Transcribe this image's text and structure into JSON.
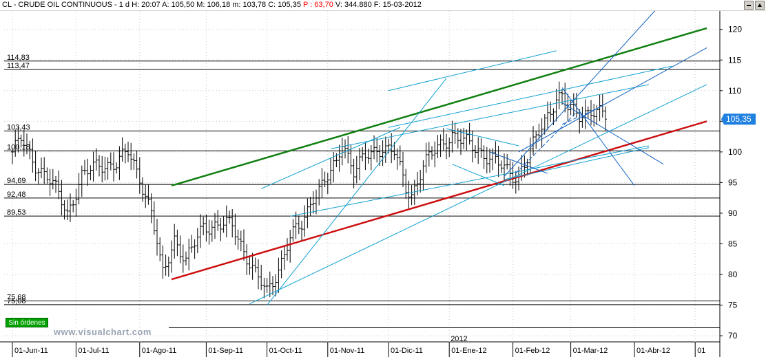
{
  "header": {
    "symbol": "CL - CRUDE OIL CONTINUOUS -",
    "period": "1 d",
    "time": "H: 20:07",
    "open": "A: 105,50",
    "high": "M: 106,18",
    "low": "m: 103,78",
    "close": "C: 105,35",
    "change": "P : 63,70",
    "volume": "V: 344.880",
    "date": "F: 15-03-2012"
  },
  "badge": {
    "label": "Sin órdenes"
  },
  "watermark": "www.visualchart.com",
  "colors": {
    "up_trend": "#108010",
    "support": "#cc1010",
    "channel": "#10a0d0",
    "fan": "#1060c0",
    "price_bar": "#000000",
    "last_price_box": "#2080e0",
    "change": "#ff0000"
  },
  "chart_data": {
    "type": "bar",
    "subtype": "ohlc",
    "title": "CL - CRUDE OIL CONTINUOUS",
    "ylim": [
      69,
      123
    ],
    "y_ticks": [
      70,
      75,
      80,
      85,
      90,
      95,
      100,
      105,
      110,
      115,
      120
    ],
    "y_tick_labels": [
      "70",
      "75",
      "80",
      "85",
      "90",
      "95",
      "100",
      "105",
      "110",
      "115",
      "120"
    ],
    "x_ticks": [
      {
        "i": 0,
        "label": "01-Jun-11"
      },
      {
        "i": 22,
        "label": "01-Jul-11"
      },
      {
        "i": 44,
        "label": "01-Ago-11"
      },
      {
        "i": 67,
        "label": "01-Sep-11"
      },
      {
        "i": 88,
        "label": "01-Oct-11"
      },
      {
        "i": 109,
        "label": "01-Nov-11"
      },
      {
        "i": 130,
        "label": "01-Dic-11"
      },
      {
        "i": 151,
        "label": "01-Ene-12"
      },
      {
        "i": 173,
        "label": "01-Feb-12"
      },
      {
        "i": 193,
        "label": "01-Mar-12"
      },
      {
        "i": 215,
        "label": "01-Abr-12"
      },
      {
        "i": 236,
        "label": "01"
      }
    ],
    "year_marker": {
      "i": 151,
      "label": "2012"
    },
    "x_count": 240,
    "last_price": 105.35,
    "last_price_label": "105,35",
    "levels": [
      {
        "value": 114.83,
        "label": "114,83"
      },
      {
        "value": 113.47,
        "label": "113,47"
      },
      {
        "value": 103.43,
        "label": "103,43"
      },
      {
        "value": 100.18,
        "label": "100,18"
      },
      {
        "value": 94.69,
        "label": "94,69"
      },
      {
        "value": 92.48,
        "label": "92,48"
      },
      {
        "value": 89.53,
        "label": "89,53"
      },
      {
        "value": 75.68,
        "label": "75,68"
      },
      {
        "value": 75.08,
        "label": "75,08"
      }
    ],
    "anchors": [
      {
        "i": 0,
        "p": 100
      },
      {
        "i": 3,
        "p": 102
      },
      {
        "i": 8,
        "p": 98
      },
      {
        "i": 12,
        "p": 96
      },
      {
        "i": 16,
        "p": 93
      },
      {
        "i": 19,
        "p": 90
      },
      {
        "i": 24,
        "p": 96
      },
      {
        "i": 30,
        "p": 98
      },
      {
        "i": 36,
        "p": 98
      },
      {
        "i": 40,
        "p": 100
      },
      {
        "i": 44,
        "p": 96
      },
      {
        "i": 48,
        "p": 90
      },
      {
        "i": 50,
        "p": 85
      },
      {
        "i": 51,
        "p": 82
      },
      {
        "i": 52,
        "p": 80
      },
      {
        "i": 56,
        "p": 86
      },
      {
        "i": 60,
        "p": 82
      },
      {
        "i": 66,
        "p": 88
      },
      {
        "i": 72,
        "p": 88
      },
      {
        "i": 76,
        "p": 88
      },
      {
        "i": 80,
        "p": 84
      },
      {
        "i": 84,
        "p": 80
      },
      {
        "i": 88,
        "p": 77
      },
      {
        "i": 92,
        "p": 81
      },
      {
        "i": 96,
        "p": 86
      },
      {
        "i": 100,
        "p": 88
      },
      {
        "i": 104,
        "p": 93
      },
      {
        "i": 108,
        "p": 95
      },
      {
        "i": 112,
        "p": 98
      },
      {
        "i": 114,
        "p": 102
      },
      {
        "i": 118,
        "p": 97
      },
      {
        "i": 122,
        "p": 99
      },
      {
        "i": 128,
        "p": 101
      },
      {
        "i": 132,
        "p": 100
      },
      {
        "i": 136,
        "p": 94
      },
      {
        "i": 138,
        "p": 93
      },
      {
        "i": 142,
        "p": 98
      },
      {
        "i": 148,
        "p": 101
      },
      {
        "i": 152,
        "p": 103
      },
      {
        "i": 158,
        "p": 101
      },
      {
        "i": 166,
        "p": 99
      },
      {
        "i": 170,
        "p": 97
      },
      {
        "i": 174,
        "p": 96
      },
      {
        "i": 178,
        "p": 99
      },
      {
        "i": 182,
        "p": 103
      },
      {
        "i": 186,
        "p": 107
      },
      {
        "i": 188,
        "p": 109
      },
      {
        "i": 190,
        "p": 109
      },
      {
        "i": 192,
        "p": 107
      },
      {
        "i": 196,
        "p": 106
      },
      {
        "i": 200,
        "p": 107
      },
      {
        "i": 204,
        "p": 106
      },
      {
        "i": 205,
        "p": 105.35
      }
    ],
    "trendlines": [
      {
        "name": "up-trend",
        "color": "#108010",
        "width": 2.5,
        "x1": 55,
        "y1": 94.5,
        "x2": 240,
        "y2": 120.2
      },
      {
        "name": "support",
        "color": "#cc1010",
        "width": 2.5,
        "x1": 55,
        "y1": 79.2,
        "x2": 240,
        "y2": 105.0
      },
      {
        "name": "ch1",
        "color": "#10a0d0",
        "width": 1,
        "x1": 82,
        "y1": 75.2,
        "x2": 240,
        "y2": 111.0
      },
      {
        "name": "ch2",
        "color": "#10a0d0",
        "width": 1,
        "x1": 88,
        "y1": 75.0,
        "x2": 150,
        "y2": 112.0
      },
      {
        "name": "ch3",
        "color": "#10a0d0",
        "width": 1,
        "x1": 96,
        "y1": 89.5,
        "x2": 220,
        "y2": 101.0
      },
      {
        "name": "ch4",
        "color": "#10a0d0",
        "width": 1,
        "x1": 170,
        "y1": 95.5,
        "x2": 220,
        "y2": 100.7
      },
      {
        "name": "ch5",
        "color": "#10a0d0",
        "width": 1,
        "x1": 110,
        "y1": 100.5,
        "x2": 220,
        "y2": 111.0
      },
      {
        "name": "ch6",
        "color": "#10a0d0",
        "width": 1,
        "x1": 130,
        "y1": 104.0,
        "x2": 228,
        "y2": 114.0
      },
      {
        "name": "ch7",
        "color": "#10a0d0",
        "width": 1,
        "x1": 130,
        "y1": 110.0,
        "x2": 188,
        "y2": 116.5
      },
      {
        "name": "ch8",
        "color": "#10a0d0",
        "width": 1,
        "x1": 86,
        "y1": 94.0,
        "x2": 134,
        "y2": 104.0
      },
      {
        "name": "fan1",
        "color": "#1060c0",
        "width": 1,
        "x1": 170,
        "y1": 96.0,
        "x2": 222,
        "y2": 123.0
      },
      {
        "name": "fan2",
        "color": "#1060c0",
        "width": 1,
        "x1": 175,
        "y1": 100.0,
        "x2": 240,
        "y2": 117.0
      },
      {
        "name": "fan3",
        "color": "#1060c0",
        "width": 1,
        "x1": 190,
        "y1": 110.5,
        "x2": 215,
        "y2": 94.5
      },
      {
        "name": "fan4",
        "color": "#1060c0",
        "width": 1,
        "x1": 165,
        "y1": 100.0,
        "x2": 185,
        "y2": 96.5
      },
      {
        "name": "fan5",
        "color": "#10a0d0",
        "width": 1,
        "x1": 150,
        "y1": 103.8,
        "x2": 175,
        "y2": 101.0
      },
      {
        "name": "fan6",
        "color": "#1060c0",
        "width": 1,
        "x1": 190,
        "y1": 108.0,
        "x2": 225,
        "y2": 98.0
      },
      {
        "name": "fan7",
        "color": "#10a0d0",
        "width": 1,
        "x1": 152,
        "y1": 98.0,
        "x2": 170,
        "y2": 94.5
      }
    ],
    "dashed_lines": [
      {
        "color": "#1060c0",
        "x1": 174,
        "y1": 96.5,
        "x2": 195,
        "y2": 106.5
      },
      {
        "color": "#1060c0",
        "x1": 190,
        "y1": 104.5,
        "x2": 204,
        "y2": 107.5
      }
    ]
  }
}
